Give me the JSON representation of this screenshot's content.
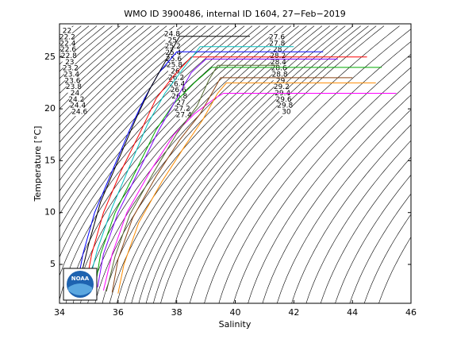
{
  "chart_data": {
    "type": "ts-diagram",
    "title": "WMO ID 3900486, internal ID 1604, 27−Feb−2019",
    "x_label": "Salinity",
    "y_label": "Temperature [°C]",
    "xlim": [
      34,
      46
    ],
    "xticks": [
      34,
      36,
      38,
      40,
      42,
      44,
      46
    ],
    "ylim": [
      1.25,
      28.2
    ],
    "yticks": [
      5,
      10,
      15,
      20,
      25
    ],
    "logo_text": "NOAA",
    "contours": {
      "color": "#000000",
      "levels": [
        22,
        22.2,
        22.4,
        22.6,
        22.8,
        23,
        23.2,
        23.4,
        23.6,
        23.8,
        24,
        24.2,
        24.4,
        24.6,
        24.8,
        25,
        25.2,
        25.4,
        25.6,
        25.8,
        26,
        26.2,
        26.4,
        26.6,
        26.8,
        27,
        27.2,
        27.4,
        27.6,
        27.8,
        28,
        28.2,
        28.4,
        28.6,
        28.8,
        29,
        29.2,
        29.4,
        29.6,
        29.8,
        30
      ],
      "unlabeled_levels": [
        30.4,
        30.8,
        31.2,
        31.6,
        32,
        32.4,
        32.8,
        33.2,
        33.6,
        34,
        34.4,
        34.8,
        35.2,
        35.6,
        36
      ]
    },
    "series": [
      {
        "color": "#0000ff",
        "x": [
          34.6,
          34.8,
          35.2,
          35.8,
          36.4,
          36.9,
          37.4,
          38.0,
          43.0
        ],
        "y": [
          3,
          6,
          10,
          14,
          18,
          21,
          23.5,
          25.5,
          25.5
        ]
      },
      {
        "color": "#ff0000",
        "x": [
          34.9,
          35.1,
          35.5,
          36.1,
          36.8,
          37.3,
          37.9,
          38.5,
          44.5
        ],
        "y": [
          3,
          6,
          10,
          14,
          18,
          21,
          23.2,
          25.0,
          25.0
        ]
      },
      {
        "color": "#00aa00",
        "x": [
          35.2,
          35.4,
          35.9,
          36.6,
          37.3,
          37.9,
          38.6,
          39.2,
          45.0
        ],
        "y": [
          2.5,
          6,
          10,
          14,
          18,
          20.5,
          22.5,
          24.0,
          24.0
        ]
      },
      {
        "color": "#ff00ff",
        "x": [
          35.5,
          35.8,
          36.3,
          37.1,
          37.9,
          38.6,
          39.3,
          39.6,
          45.5
        ],
        "y": [
          2.5,
          6,
          10,
          14,
          17.5,
          19.5,
          21.0,
          21.5,
          21.5
        ]
      },
      {
        "color": "#00bfbf",
        "x": [
          35.0,
          35.3,
          35.8,
          36.4,
          37.0,
          37.6,
          38.2,
          38.8,
          42.0
        ],
        "y": [
          3.2,
          6.5,
          10.5,
          14.5,
          18.5,
          21.5,
          23.8,
          26.0,
          26.0
        ]
      },
      {
        "color": "#8b4513",
        "x": [
          35.8,
          36.0,
          36.5,
          37.3,
          38.1,
          38.8,
          39.3,
          39.5,
          44.0
        ],
        "y": [
          2.3,
          5.5,
          9.5,
          13.5,
          17,
          19.5,
          22.0,
          23.0,
          23.0
        ]
      },
      {
        "color": "#000000",
        "x": [
          34.7,
          35.0,
          35.4,
          36.0,
          36.6,
          37.1,
          37.6,
          38.1,
          40.5
        ],
        "y": [
          3.5,
          7,
          11,
          15,
          19,
          22,
          24.5,
          27.0,
          27.0
        ]
      },
      {
        "color": "#ff8c00",
        "x": [
          36.0,
          36.2,
          36.7,
          37.5,
          38.3,
          38.9,
          39.4,
          39.7,
          44.8
        ],
        "y": [
          2.2,
          5,
          9,
          13,
          16.5,
          19,
          21.5,
          22.5,
          22.5
        ]
      },
      {
        "color": "#7f00ff",
        "x": [
          35.3,
          35.5,
          36.0,
          36.7,
          37.4,
          38.0,
          38.5,
          39.0,
          43.5
        ],
        "y": [
          2.8,
          6,
          10,
          14,
          18,
          21,
          23.5,
          24.8,
          24.8
        ]
      },
      {
        "color": "#556b2f",
        "x": [
          35.6,
          35.9,
          36.4,
          37.2,
          38.0,
          38.7,
          39.1,
          39.4,
          41.5
        ],
        "y": [
          2.4,
          5.8,
          9.8,
          13.8,
          17.6,
          20.3,
          22.8,
          24.2,
          24.2
        ]
      }
    ]
  }
}
